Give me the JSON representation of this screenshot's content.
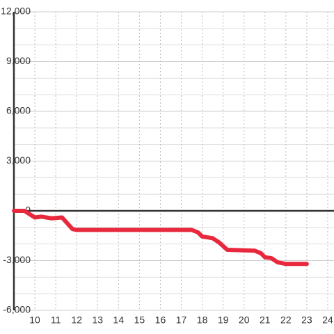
{
  "chart_data": {
    "type": "line",
    "x": [
      9.0,
      9.5,
      10.0,
      10.3,
      10.8,
      11.3,
      11.8,
      12.0,
      17.5,
      17.8,
      18.0,
      18.5,
      18.8,
      19.2,
      20.0,
      20.5,
      20.8,
      21.0,
      21.3,
      21.6,
      22.0,
      23.0
    ],
    "series": [
      {
        "color": "#e8283c",
        "values": [
          0,
          0,
          -400,
          -350,
          -450,
          -400,
          -1100,
          -1150,
          -1150,
          -1300,
          -1550,
          -1650,
          -1900,
          -2350,
          -2380,
          -2400,
          -2550,
          -2800,
          -2850,
          -3100,
          -3200,
          -3200
        ]
      }
    ],
    "xlim": [
      9,
      24.3
    ],
    "xticks": [
      10,
      11,
      12,
      13,
      14,
      15,
      16,
      17,
      18,
      19,
      20,
      21,
      22,
      23,
      24
    ],
    "ylim": [
      -6000,
      12000
    ],
    "yticks": [
      {
        "value": 12000,
        "label": "12,000"
      },
      {
        "value": 9000,
        "label": "9,000"
      },
      {
        "value": 6000,
        "label": "6,000"
      },
      {
        "value": 3000,
        "label": "3,000"
      },
      0,
      {
        "value": -3000,
        "label": "-3,000"
      },
      {
        "value": -6000,
        "label": "-6,000"
      }
    ],
    "minor_yticks": [
      -5000,
      -4000,
      -2000,
      -1000,
      1000,
      2000,
      4000,
      5000,
      7000,
      8000,
      10000,
      11000
    ],
    "grid": true
  }
}
